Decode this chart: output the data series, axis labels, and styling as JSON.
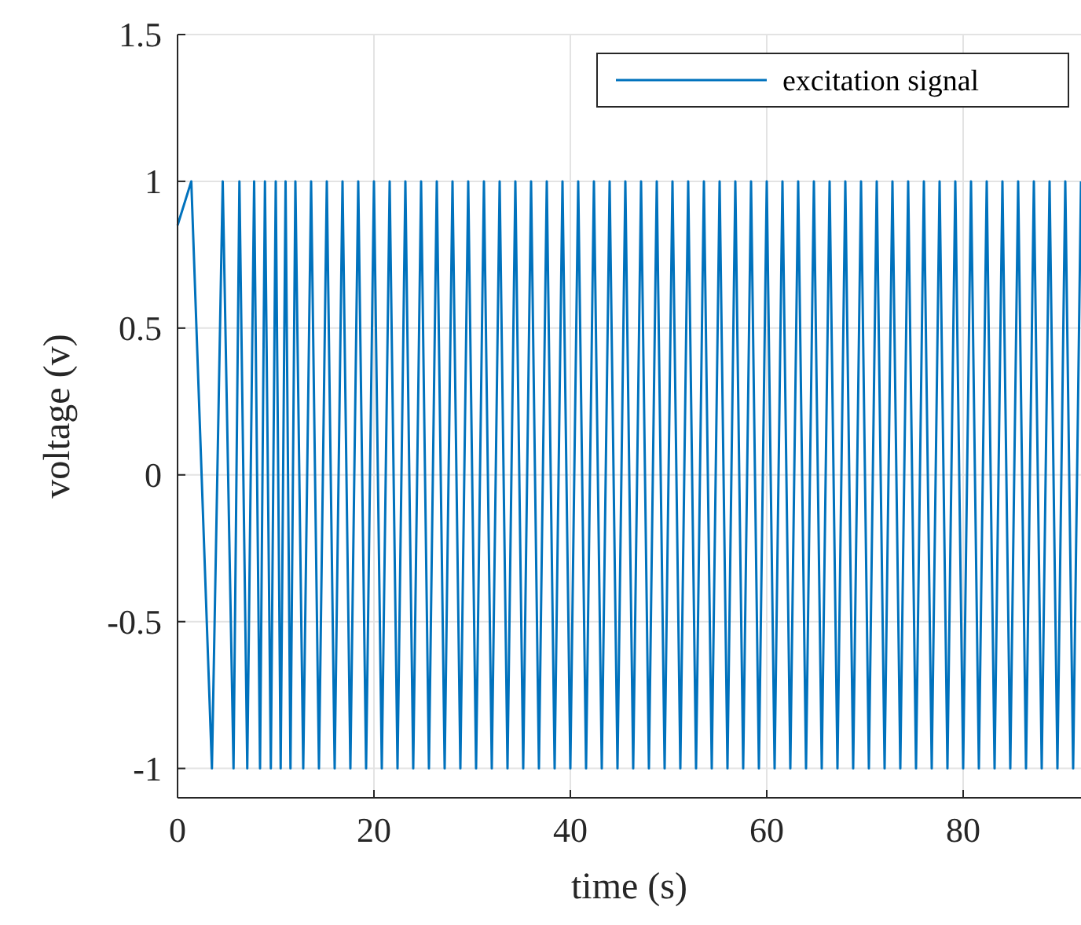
{
  "chart_data": {
    "type": "line",
    "xlabel": "time (s)",
    "ylabel": "voltage (v)",
    "xlim": [
      0,
      92
    ],
    "xticks": [
      0,
      20,
      40,
      60,
      80
    ],
    "ylim": [
      -1.1,
      1.5
    ],
    "yticks": [
      -1,
      -0.5,
      0,
      0.5,
      1,
      1.5
    ],
    "grid": true,
    "legend": "top right",
    "line_style": "solid",
    "marker": "none",
    "series": [
      {
        "name": "excitation signal",
        "color": "#0072bd",
        "x": [
          0,
          1.4,
          3.5,
          4.6,
          5.7,
          6.3,
          7.1,
          7.8,
          8.4,
          8.9,
          9.5,
          10,
          10.5,
          11,
          11.5,
          12,
          12.8,
          13.6,
          14.4,
          15.2,
          16,
          16.8,
          17.6,
          18.4,
          19.2,
          20,
          20.8,
          21.6,
          22.4,
          23.2,
          24,
          24.8,
          25.6,
          26.4,
          27.2,
          28,
          28.8,
          29.6,
          30.4,
          31.2,
          32,
          32.8,
          33.6,
          34.4,
          35.2,
          36,
          36.8,
          37.6,
          38.4,
          39.2,
          40,
          40.8,
          41.6,
          42.4,
          43.2,
          44,
          44.8,
          45.6,
          46.4,
          47.2,
          48,
          48.8,
          49.6,
          50.4,
          51.2,
          52,
          52.8,
          53.6,
          54.4,
          55.2,
          56,
          56.8,
          57.6,
          58.4,
          59.2,
          60,
          60.8,
          61.6,
          62.4,
          63.2,
          64,
          64.8,
          65.6,
          66.4,
          67.2,
          68,
          68.8,
          69.6,
          70.4,
          71.2,
          72,
          72.8,
          73.6,
          74.4,
          75.2,
          76,
          76.8,
          77.6,
          78.4,
          79.2,
          80,
          80.8,
          81.6,
          82.4,
          83.2,
          84,
          84.8,
          85.6,
          86.4,
          87.2,
          88,
          88.8,
          89.6,
          90.4,
          91.2,
          92
        ],
        "values": [
          0.85,
          1,
          -1,
          1,
          -1,
          1,
          -1,
          1,
          -1,
          1,
          -1,
          1,
          -1,
          1,
          -1,
          1,
          -1,
          1,
          -1,
          1,
          -1,
          1,
          -1,
          1,
          -1,
          1,
          -1,
          1,
          -1,
          1,
          -1,
          1,
          -1,
          1,
          -1,
          1,
          -1,
          1,
          -1,
          1,
          -1,
          1,
          -1,
          1,
          -1,
          1,
          -1,
          1,
          -1,
          1,
          -1,
          1,
          -1,
          1,
          -1,
          1,
          -1,
          1,
          -1,
          1,
          -1,
          1,
          -1,
          1,
          -1,
          1,
          -1,
          1,
          -1,
          1,
          -1,
          1,
          -1,
          1,
          -1,
          1,
          -1,
          1,
          -1,
          1,
          -1,
          1,
          -1,
          1,
          -1,
          1,
          -1,
          1,
          -1,
          1,
          -1,
          1,
          -1,
          1,
          -1,
          1,
          -1,
          1,
          -1,
          1,
          -1,
          1,
          -1,
          1,
          -1,
          1,
          -1,
          1,
          -1,
          1,
          -1,
          1,
          -1,
          1,
          -1,
          1
        ]
      }
    ]
  }
}
